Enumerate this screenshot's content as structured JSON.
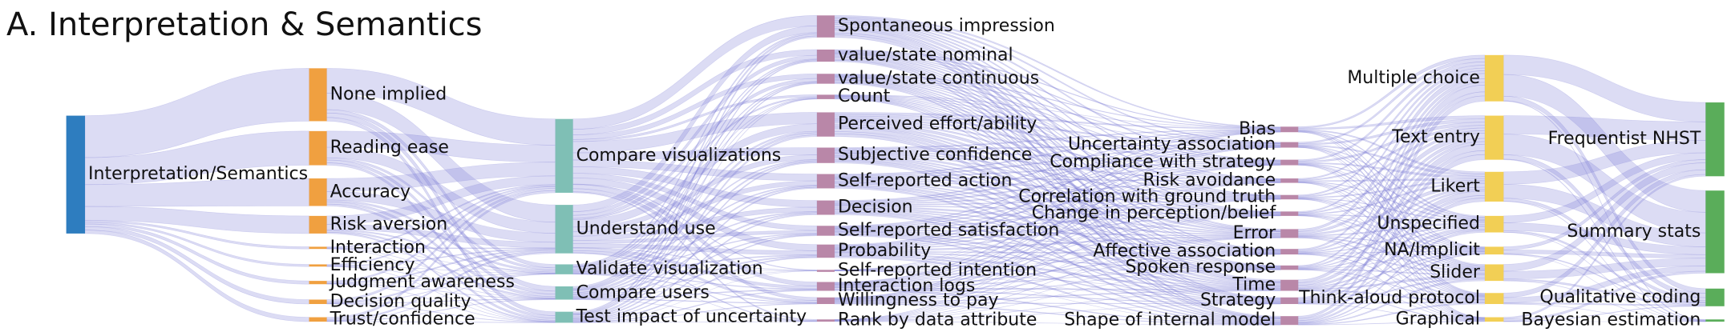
{
  "title": "A. Interpretation & Semantics",
  "columns": [
    {
      "nodes": [
        {
          "label": "Interpretation/Semantics"
        }
      ]
    },
    {
      "nodes": [
        {
          "label": "None implied"
        },
        {
          "label": "Reading ease"
        },
        {
          "label": "Accuracy"
        },
        {
          "label": "Risk aversion"
        },
        {
          "label": "Interaction"
        },
        {
          "label": "Efficiency"
        },
        {
          "label": "Judgment awareness"
        },
        {
          "label": "Decision quality"
        },
        {
          "label": "Trust/confidence"
        }
      ]
    },
    {
      "nodes": [
        {
          "label": "Compare visualizations"
        },
        {
          "label": "Understand use"
        },
        {
          "label": "Validate visualization"
        },
        {
          "label": "Compare users"
        },
        {
          "label": "Test impact of uncertainty"
        }
      ]
    },
    {
      "nodes": [
        {
          "label": "Spontaneous impression"
        },
        {
          "label": "value/state nominal"
        },
        {
          "label": "value/state continuous"
        },
        {
          "label": "Count"
        },
        {
          "label": "Perceived effort/ability"
        },
        {
          "label": "Subjective confidence"
        },
        {
          "label": "Self-reported action"
        },
        {
          "label": "Decision"
        },
        {
          "label": "Self-reported satisfaction"
        },
        {
          "label": "Probability"
        },
        {
          "label": "Self-reported intention"
        },
        {
          "label": "Interaction logs"
        },
        {
          "label": "Willingness to pay"
        },
        {
          "label": "Rank by data attribute"
        }
      ]
    },
    {
      "nodes": [
        {
          "label": "Bias"
        },
        {
          "label": "Uncertainty association"
        },
        {
          "label": "Compliance with strategy"
        },
        {
          "label": "Risk avoidance"
        },
        {
          "label": "Correlation with ground truth"
        },
        {
          "label": "Change in perception/belief"
        },
        {
          "label": "Error"
        },
        {
          "label": "Affective association"
        },
        {
          "label": "Spoken response"
        },
        {
          "label": "Time"
        },
        {
          "label": "Strategy"
        },
        {
          "label": "Shape of internal model"
        }
      ]
    },
    {
      "nodes": [
        {
          "label": "Multiple choice"
        },
        {
          "label": "Text entry"
        },
        {
          "label": "Likert"
        },
        {
          "label": "Unspecified"
        },
        {
          "label": "NA/Implicit"
        },
        {
          "label": "Slider"
        },
        {
          "label": "Think-aloud protocol"
        },
        {
          "label": "Graphical"
        }
      ]
    },
    {
      "nodes": [
        {
          "label": "Frequentist NHST"
        },
        {
          "label": "Summary stats"
        },
        {
          "label": "Qualitative coding"
        },
        {
          "label": "Bayesian estimation"
        }
      ]
    }
  ]
}
